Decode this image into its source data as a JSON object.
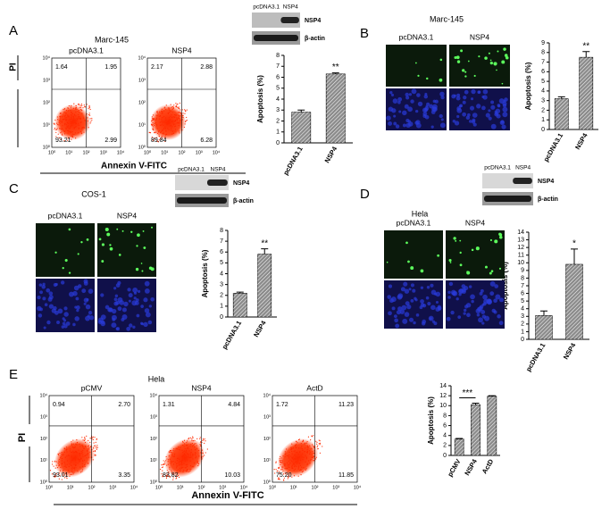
{
  "chart_data": [
    {
      "type": "bar",
      "ylabel": "Apoptosis (%)",
      "categories": [
        "pcDNA3.1",
        "NSP4"
      ],
      "values": [
        2.8,
        6.3
      ],
      "errors": [
        0.2,
        0.1
      ],
      "ylim": [
        0,
        8
      ],
      "yticks": [
        0,
        1,
        2,
        3,
        4,
        5,
        6,
        7,
        8
      ],
      "annotation": "**",
      "color": "#8c8c8c"
    },
    {
      "type": "bar",
      "ylabel": "Apoptosis (%)",
      "categories": [
        "pcDNA3.1",
        "NSP4"
      ],
      "values": [
        3.2,
        7.5
      ],
      "errors": [
        0.2,
        0.6
      ],
      "ylim": [
        0,
        9
      ],
      "yticks": [
        0,
        1,
        2,
        3,
        4,
        5,
        6,
        7,
        8,
        9
      ],
      "annotation": "**",
      "color": "#8c8c8c"
    },
    {
      "type": "bar",
      "ylabel": "Apoptosis (%)",
      "categories": [
        "pcDNA3.1",
        "NSP4"
      ],
      "values": [
        2.2,
        5.8
      ],
      "errors": [
        0.1,
        0.5
      ],
      "ylim": [
        0,
        8
      ],
      "yticks": [
        0,
        1,
        2,
        3,
        4,
        5,
        6,
        7,
        8
      ],
      "annotation": "**",
      "color": "#8c8c8c"
    },
    {
      "type": "bar",
      "ylabel": "Apoptosis (%)",
      "categories": [
        "pcDNA3.1",
        "NSP4"
      ],
      "values": [
        3.1,
        9.8
      ],
      "errors": [
        0.6,
        2.0
      ],
      "ylim": [
        0,
        14
      ],
      "yticks": [
        0,
        1,
        2,
        3,
        4,
        5,
        6,
        7,
        8,
        9,
        10,
        11,
        12,
        13,
        14
      ],
      "annotation": "*",
      "color": "#8c8c8c"
    },
    {
      "type": "bar",
      "ylabel": "Apoptosis (%)",
      "categories": [
        "pCMV",
        "NSP4",
        "ActD"
      ],
      "values": [
        3.3,
        10.2,
        11.9
      ],
      "errors": [
        0.1,
        0.3,
        0.1
      ],
      "ylim": [
        0,
        14
      ],
      "yticks": [
        0,
        2,
        4,
        6,
        8,
        10,
        12,
        14
      ],
      "annotation": "***",
      "color": "#8c8c8c"
    }
  ],
  "flow_ticks": [
    "10⁰",
    "10¹",
    "10²",
    "10³",
    "10⁴"
  ],
  "panels": {
    "A": {
      "label": "A",
      "cell_line": "Marc-145",
      "y_label": "PI",
      "x_label": "Annexin V-FITC",
      "flow": [
        {
          "title": "pcDNA3.1",
          "quadrants": [
            "1.64",
            "1.95",
            "93.21",
            "2.99"
          ]
        },
        {
          "title": "NSP4",
          "quadrants": [
            "2.17",
            "2.88",
            "89.84",
            "6.28"
          ]
        }
      ],
      "blot": {
        "lanes": [
          "pcDNA3.1",
          "NSP4"
        ],
        "bands": [
          "NSP4",
          "β-actin"
        ]
      }
    },
    "B": {
      "label": "B",
      "cell_line": "Marc-145",
      "images": [
        "pcDNA3.1",
        "NSP4"
      ]
    },
    "C": {
      "label": "C",
      "cell_line": "COS-1",
      "images": [
        "pcDNA3.1",
        "NSP4"
      ],
      "blot": {
        "lanes": [
          "pcDNA3.1",
          "NSP4"
        ],
        "bands": [
          "NSP4",
          "β-actin"
        ]
      }
    },
    "D": {
      "label": "D",
      "cell_line": "Hela",
      "images": [
        "pcDNA3.1",
        "NSP4"
      ],
      "blot": {
        "lanes": [
          "pcDNA3.1",
          "NSP4"
        ],
        "bands": [
          "NSP4",
          "β-actin"
        ]
      }
    },
    "E": {
      "label": "E",
      "cell_line": "Hela",
      "y_label": "PI",
      "x_label": "Annexin V-FITC",
      "flow": [
        {
          "title": "pCMV",
          "quadrants": [
            "0.94",
            "2.70",
            "93.01",
            "3.35"
          ]
        },
        {
          "title": "NSP4",
          "quadrants": [
            "1.31",
            "4.84",
            "83.82",
            "10.03"
          ]
        },
        {
          "title": "ActD",
          "quadrants": [
            "1.72",
            "11.23",
            "75.20",
            "11.85"
          ]
        }
      ]
    }
  }
}
